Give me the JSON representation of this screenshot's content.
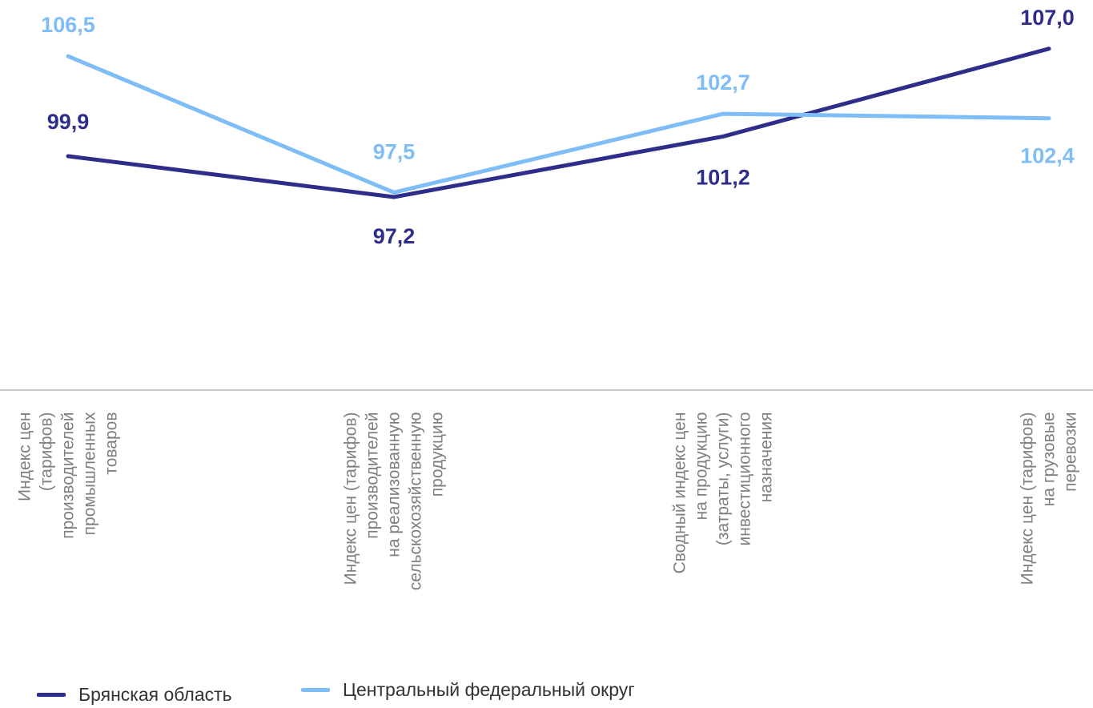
{
  "chart_data": {
    "type": "line",
    "categories": [
      [
        "Индекс цен",
        "(тарифов)",
        "производителей",
        "промышленных",
        "товаров"
      ],
      [
        "Индекс цен (тарифов)",
        "производителей",
        "на реализованную",
        "сельскохозяйственную",
        "продукцию"
      ],
      [
        "Сводный индекс  цен",
        "на продукцию",
        "(затраты, услуги)",
        "инвестиционного",
        "назначения"
      ],
      [
        "Индекс цен (тарифов)",
        "на грузовые",
        "перевозки"
      ]
    ],
    "series": [
      {
        "name": "Брянская область",
        "color": "#2e2e8a",
        "values": [
          99.9,
          97.2,
          101.2,
          107.0
        ],
        "labels": [
          "99,9",
          "97,2",
          "101,2",
          "107,0"
        ]
      },
      {
        "name": "Центральный федеральный округ",
        "color": "#7fbdf7",
        "values": [
          106.5,
          97.5,
          102.7,
          102.4
        ],
        "labels": [
          "106,5",
          "97,5",
          "102,7",
          "102,4"
        ]
      }
    ],
    "grid": false,
    "legend_position": "bottom-left"
  }
}
